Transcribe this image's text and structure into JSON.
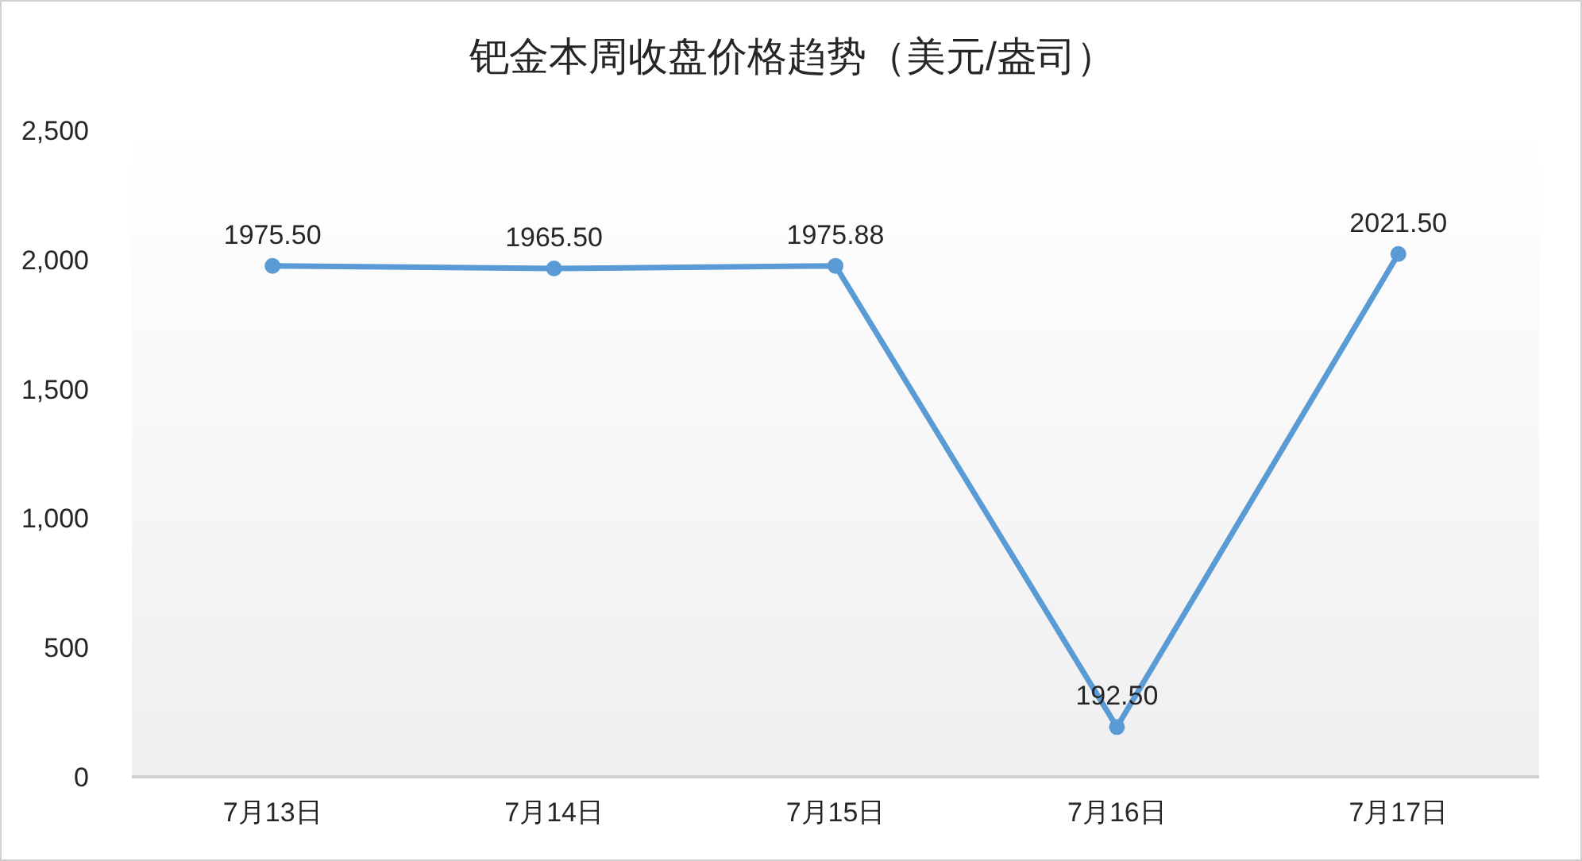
{
  "chart_data": {
    "type": "line",
    "title": "钯金本周收盘价格趋势（美元/盎司）",
    "categories": [
      "7月13日",
      "7月14日",
      "7月15日",
      "7月16日",
      "7月17日"
    ],
    "series": [
      {
        "color": "#5b9bd5",
        "values": [
          1975.5,
          1965.5,
          1975.88,
          192.5,
          2021.5
        ],
        "value_labels": [
          "1975.50",
          "1965.50",
          "1975.88",
          "192.50",
          "2021.50"
        ]
      }
    ],
    "ylim": [
      0,
      2500
    ],
    "yticks": [
      0,
      500,
      {
        "value": 1000,
        "label": "1,000"
      },
      {
        "value": 1500,
        "label": "1,500"
      },
      {
        "value": 2000,
        "label": "2,000"
      },
      {
        "value": 2500,
        "label": "2,500"
      }
    ],
    "marker": "circle",
    "line_style": "solid"
  }
}
